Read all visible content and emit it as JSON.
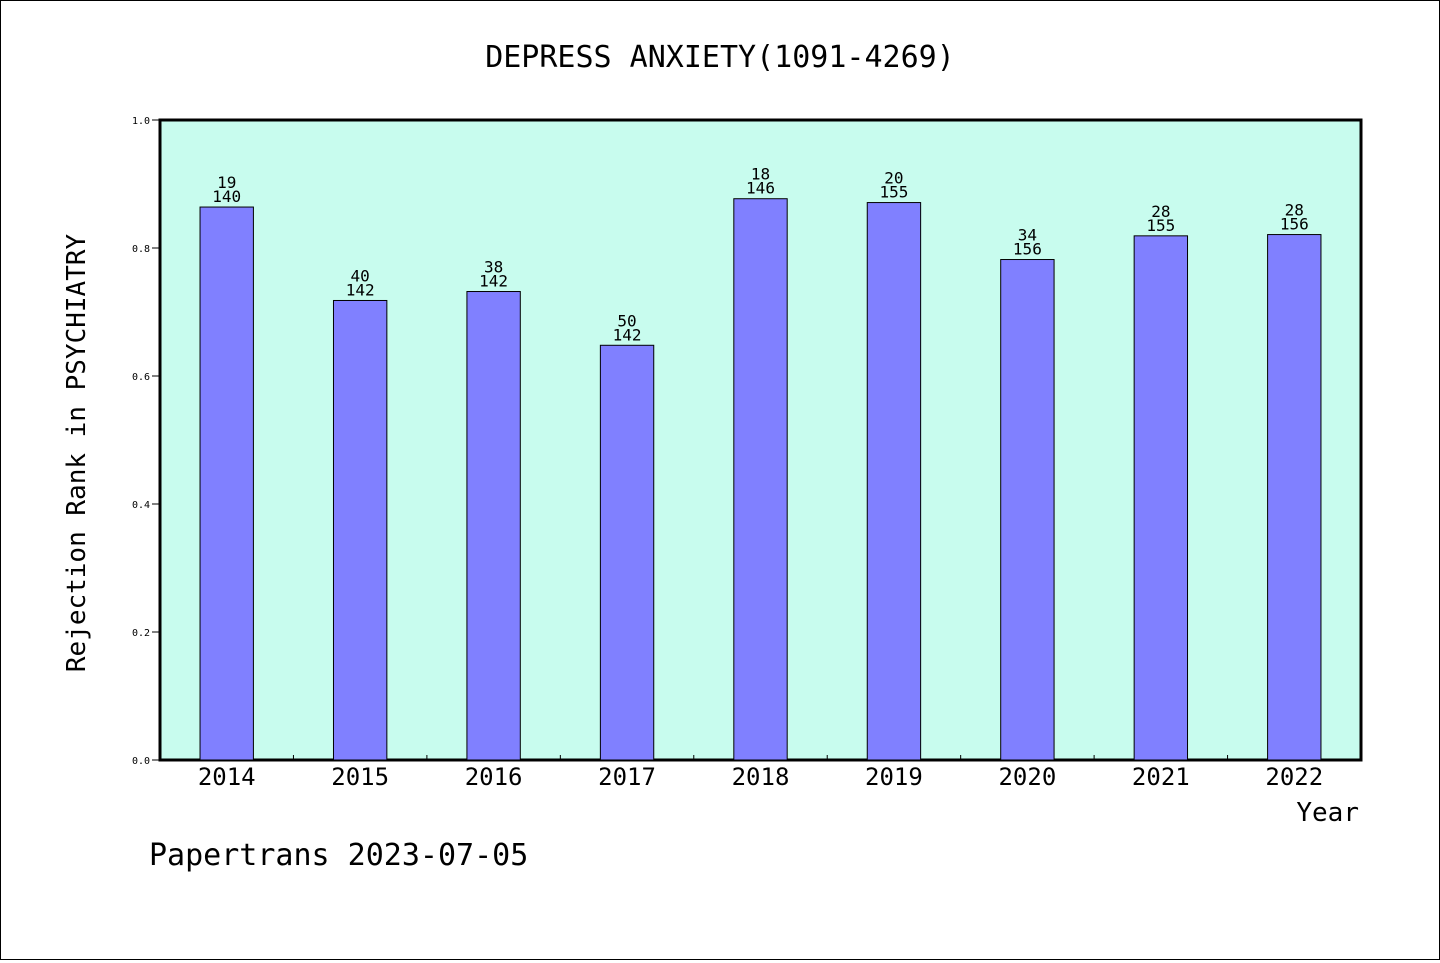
{
  "chart_data": {
    "type": "bar",
    "title": "DEPRESS ANXIETY(1091-4269)",
    "xlabel": "Year",
    "ylabel": "Rejection Rank in PSYCHIATRY",
    "categories": [
      "2014",
      "2015",
      "2016",
      "2017",
      "2018",
      "2019",
      "2020",
      "2021",
      "2022"
    ],
    "values": [
      0.864,
      0.718,
      0.732,
      0.648,
      0.877,
      0.871,
      0.782,
      0.819,
      0.821
    ],
    "labels_top": [
      "19",
      "40",
      "38",
      "50",
      "18",
      "20",
      "34",
      "28",
      "28"
    ],
    "labels_bottom": [
      "140",
      "142",
      "142",
      "142",
      "146",
      "155",
      "156",
      "155",
      "156"
    ],
    "ylim": [
      0,
      1.0
    ],
    "yticks": [
      "0.0",
      "0.2",
      "0.4",
      "0.6",
      "0.8",
      "1.0"
    ],
    "grid": false,
    "colors": {
      "plot_background": "#c8fcee",
      "bar_fill": "#8080ff",
      "bar_stroke": "#000000"
    }
  },
  "footer": {
    "text": "Papertrans 2023-07-05"
  }
}
